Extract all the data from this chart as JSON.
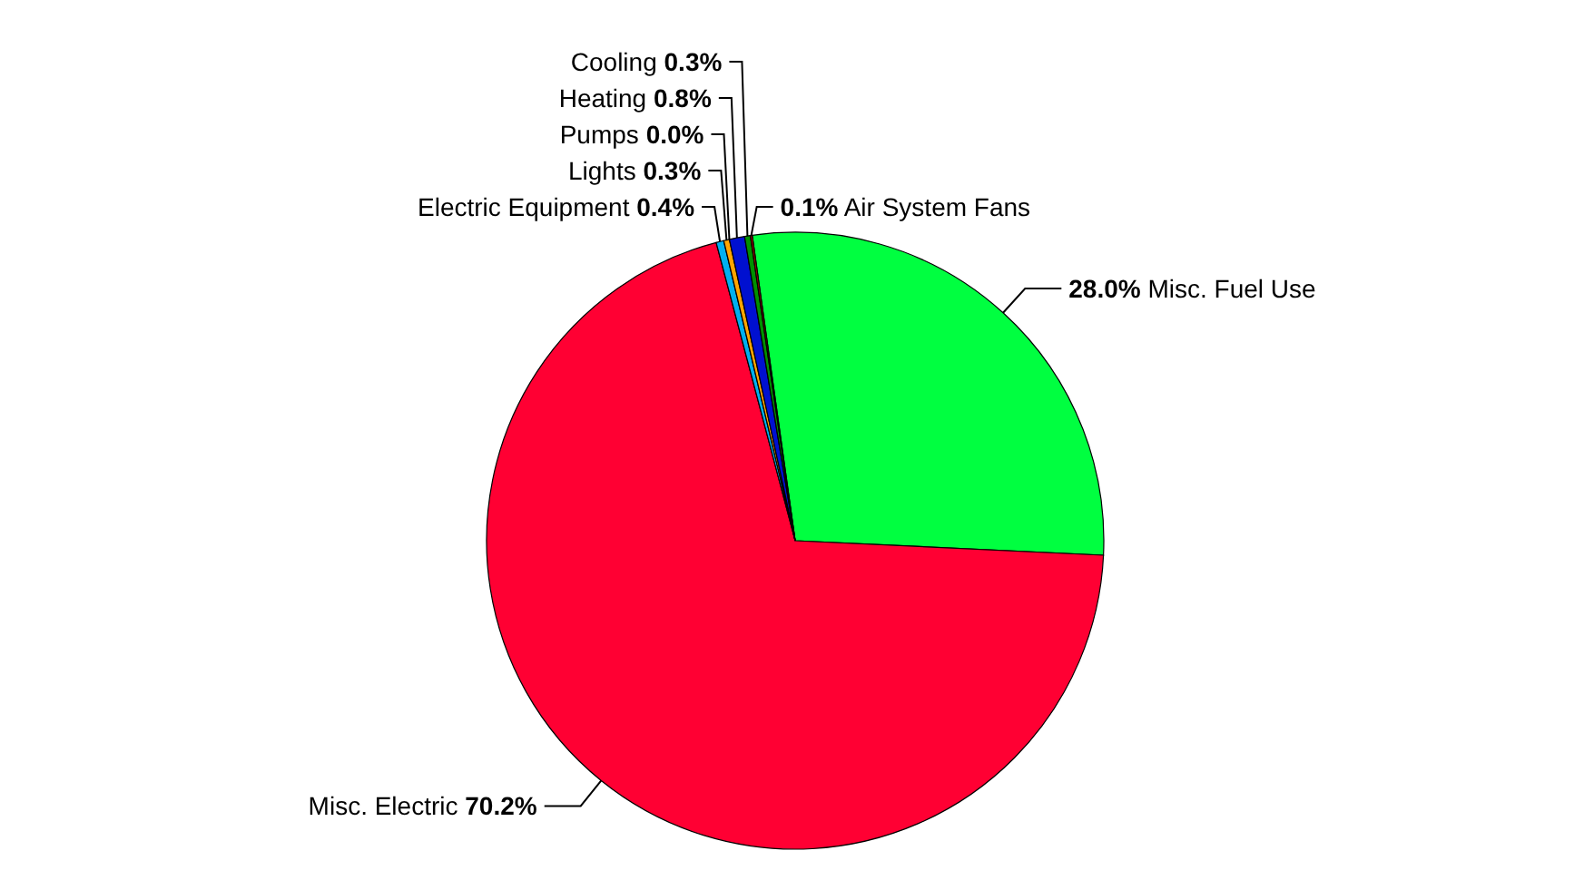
{
  "chart_data": {
    "type": "pie",
    "categories": [
      "Misc. Fuel Use",
      "Misc. Electric",
      "Electric Equipment",
      "Lights",
      "Pumps",
      "Heating",
      "Cooling",
      "Air System Fans"
    ],
    "values": [
      28.0,
      70.2,
      0.4,
      0.3,
      0.0,
      0.8,
      0.3,
      0.1
    ],
    "value_labels": [
      "28.0%",
      "70.2%",
      "0.4%",
      "0.3%",
      "0.0%",
      "0.8%",
      "0.3%",
      "0.1%"
    ],
    "colors": [
      "#00ff40",
      "#ff0033",
      "#00b0f0",
      "#ffa500",
      "#8000ff",
      "#0010d0",
      "#009000",
      "#c00000"
    ],
    "legend": false
  }
}
